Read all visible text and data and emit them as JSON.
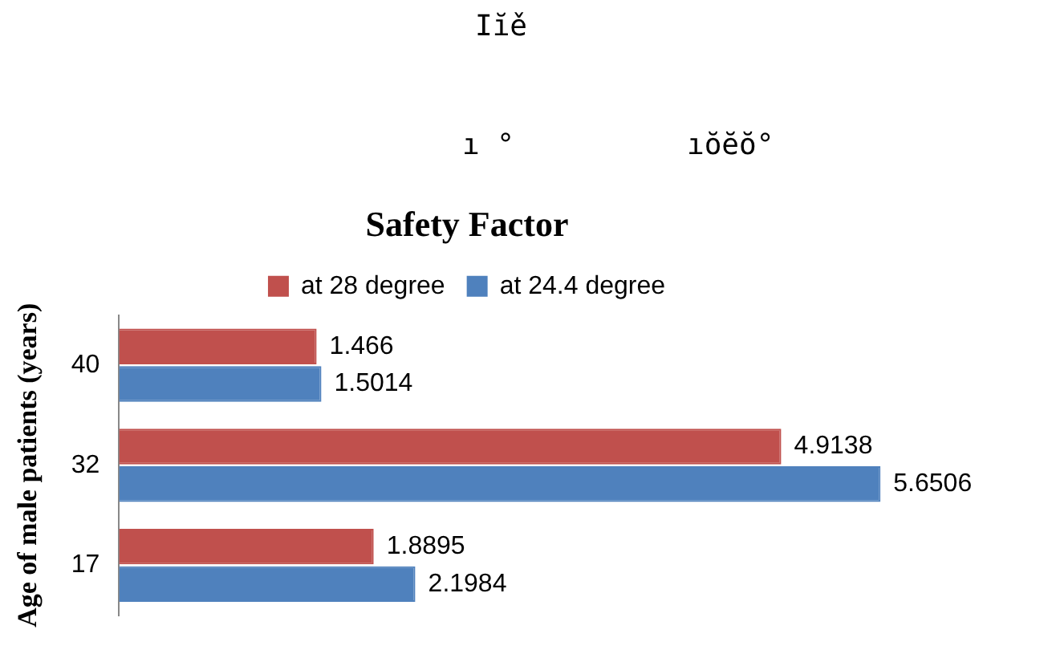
{
  "chart_data": {
    "type": "bar",
    "orientation": "horizontal",
    "title": "Safety Factor",
    "ylabel": "Age of male patients (years)",
    "annotations": [
      "Iĭě",
      "ı °",
      "ıŏĕŏ°"
    ],
    "categories": [
      "40",
      "32",
      "17"
    ],
    "series": [
      {
        "name": "at 28 degree",
        "color": "#c0504d",
        "values": [
          1.466,
          4.9138,
          1.8895
        ]
      },
      {
        "name": "at 24.4 degree",
        "color": "#4f81bd",
        "values": [
          1.5014,
          5.6506,
          2.1984
        ]
      }
    ],
    "tick_labels": "y",
    "data_labels": true,
    "legend": "top",
    "grid": false
  }
}
